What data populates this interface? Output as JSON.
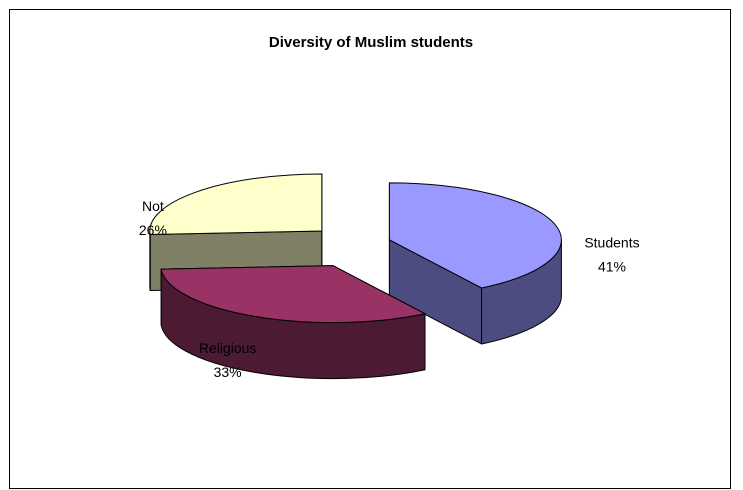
{
  "chart_data": {
    "type": "pie",
    "title": "Diversity of Muslim students",
    "slices": [
      {
        "label": "Students",
        "value": 41,
        "value_label": "41%",
        "color": "#9999ff",
        "side_color": "#4c4c80"
      },
      {
        "label": "Religious",
        "value": 33,
        "value_label": "33%",
        "color": "#993366",
        "side_color": "#4c1a33"
      },
      {
        "label": "Not",
        "value": 26,
        "value_label": "26%",
        "color": "#ffffcc",
        "side_color": "#808066"
      }
    ],
    "style": "3d-exploded",
    "legend": "none"
  }
}
